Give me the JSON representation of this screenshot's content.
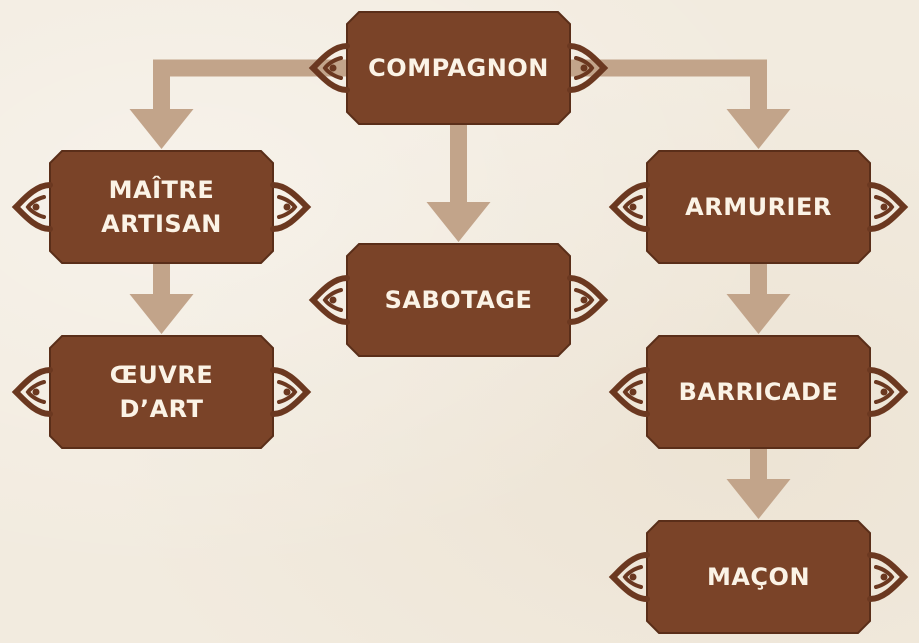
{
  "colors": {
    "box": "#7a4328",
    "box_border": "#5a2e19",
    "knot": "#6b3820",
    "arrow": "#c2a48a",
    "text": "#fbf3e6",
    "background": "#f2ebdf"
  },
  "nodes": {
    "compagnon": {
      "label": "COMPAGNON"
    },
    "maitre_artisan": {
      "label": "MAÎTRE\nARTISAN"
    },
    "oeuvre_dart": {
      "label": "ŒUVRE\nD’ART"
    },
    "sabotage": {
      "label": "SABOTAGE"
    },
    "armurier": {
      "label": "ARMURIER"
    },
    "barricade": {
      "label": "BARRICADE"
    },
    "macon": {
      "label": "MAÇON"
    }
  },
  "edges": [
    {
      "from": "compagnon",
      "to": "maitre_artisan"
    },
    {
      "from": "compagnon",
      "to": "sabotage"
    },
    {
      "from": "compagnon",
      "to": "armurier"
    },
    {
      "from": "maitre_artisan",
      "to": "oeuvre_dart"
    },
    {
      "from": "armurier",
      "to": "barricade"
    },
    {
      "from": "barricade",
      "to": "macon"
    }
  ]
}
